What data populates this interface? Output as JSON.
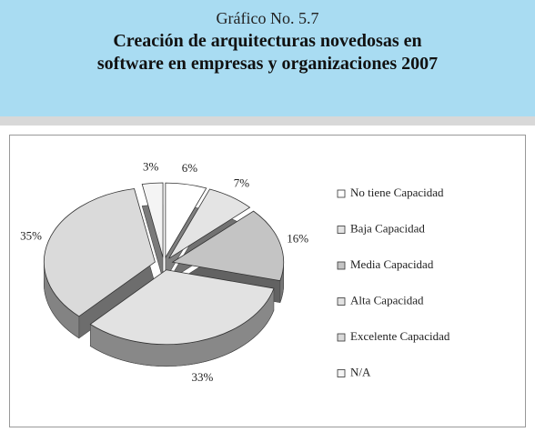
{
  "chart_data": {
    "type": "pie",
    "subtitle": "Gráfico No. 5.7",
    "title": "Creación de arquitecturas novedosas en software en empresas y organizaciones 2007",
    "categories": [
      "No tiene Capacidad",
      "Baja Capacidad",
      "Media Capacidad",
      "Alta Capacidad",
      "Excelente Capacidad",
      "N/A"
    ],
    "values": [
      6,
      7,
      16,
      33,
      35,
      3
    ],
    "value_labels": [
      "6%",
      "7%",
      "16%",
      "33%",
      "35%",
      "3%"
    ],
    "colors": [
      "#ffffff",
      "#e4e4e4",
      "#c4c4c4",
      "#e2e2e2",
      "#dadada",
      "#f4f4f4"
    ],
    "legend": "right"
  }
}
